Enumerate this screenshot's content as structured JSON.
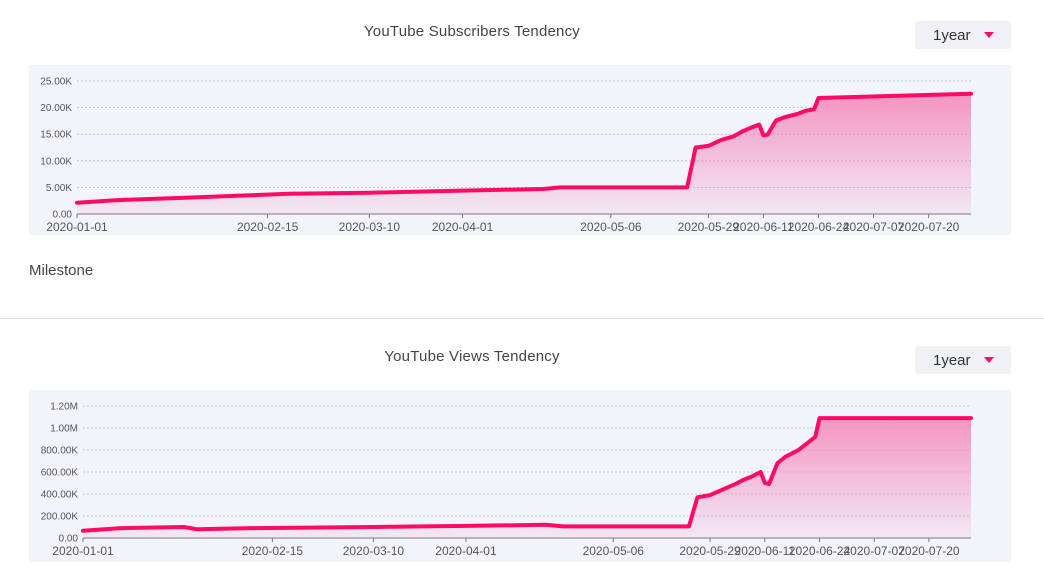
{
  "colors": {
    "line": "#ff0a64",
    "fill_top": "#f48fbf",
    "plot_bg": "#f2f4fb",
    "grid": "#b8b8c4"
  },
  "subscribers": {
    "title": "YouTube Subscribers Tendency",
    "range_label": "1year",
    "milestone_label": "Milestone"
  },
  "views": {
    "title": "YouTube Views Tendency",
    "range_label": "1year"
  },
  "chart_data": [
    {
      "type": "area",
      "title": "YouTube Subscribers Tendency",
      "xlabel": "",
      "ylabel": "",
      "x_start": "2020-01-01",
      "x_end": "2020-07-30",
      "x_ticks": [
        "2020-01-01",
        "2020-02-15",
        "2020-03-10",
        "2020-04-01",
        "2020-05-06",
        "2020-05-29",
        "2020-06-11",
        "2020-06-24",
        "2020-07-07",
        "2020-07-20"
      ],
      "y_ticks": [
        "0.00",
        "5.00K",
        "10.00K",
        "15.00K",
        "20.00K",
        "25.00K"
      ],
      "ylim": [
        0,
        25000
      ],
      "grid": true,
      "series": [
        {
          "x": [
            "2020-01-01",
            "2020-01-10",
            "2020-01-25",
            "2020-02-10",
            "2020-02-20",
            "2020-03-10",
            "2020-04-01",
            "2020-04-20",
            "2020-04-24",
            "2020-05-24",
            "2020-05-26",
            "2020-05-29",
            "2020-06-01",
            "2020-06-04",
            "2020-06-06",
            "2020-06-08",
            "2020-06-10",
            "2020-06-11",
            "2020-06-12",
            "2020-06-14",
            "2020-06-16",
            "2020-06-19",
            "2020-06-21",
            "2020-06-23",
            "2020-06-24",
            "2020-07-30"
          ],
          "y": [
            2100,
            2600,
            3000,
            3500,
            3800,
            4000,
            4400,
            4700,
            5000,
            5000,
            12500,
            12800,
            13900,
            14600,
            15500,
            16200,
            16800,
            14800,
            14900,
            17600,
            18200,
            18800,
            19400,
            19700,
            21800,
            22600
          ]
        }
      ]
    },
    {
      "type": "area",
      "title": "YouTube Views Tendency",
      "xlabel": "",
      "ylabel": "",
      "x_start": "2020-01-01",
      "x_end": "2020-07-30",
      "x_ticks": [
        "2020-01-01",
        "2020-02-15",
        "2020-03-10",
        "2020-04-01",
        "2020-05-06",
        "2020-05-29",
        "2020-06-11",
        "2020-06-24",
        "2020-07-07",
        "2020-07-20"
      ],
      "y_ticks": [
        "0.00",
        "200.00K",
        "400.00K",
        "600.00K",
        "800.00K",
        "1.00M",
        "1.20M"
      ],
      "ylim": [
        0,
        1200000
      ],
      "grid": true,
      "series": [
        {
          "x": [
            "2020-01-01",
            "2020-01-10",
            "2020-01-25",
            "2020-01-28",
            "2020-02-10",
            "2020-03-10",
            "2020-04-01",
            "2020-04-20",
            "2020-04-24",
            "2020-05-24",
            "2020-05-26",
            "2020-05-29",
            "2020-06-01",
            "2020-06-04",
            "2020-06-06",
            "2020-06-08",
            "2020-06-10",
            "2020-06-11",
            "2020-06-12",
            "2020-06-14",
            "2020-06-16",
            "2020-06-19",
            "2020-06-21",
            "2020-06-23",
            "2020-06-24",
            "2020-07-30"
          ],
          "y": [
            65000,
            90000,
            100000,
            80000,
            90000,
            100000,
            110000,
            120000,
            105000,
            105000,
            370000,
            390000,
            440000,
            490000,
            530000,
            560000,
            600000,
            500000,
            490000,
            680000,
            740000,
            800000,
            860000,
            920000,
            1090000,
            1090000
          ]
        }
      ]
    }
  ]
}
